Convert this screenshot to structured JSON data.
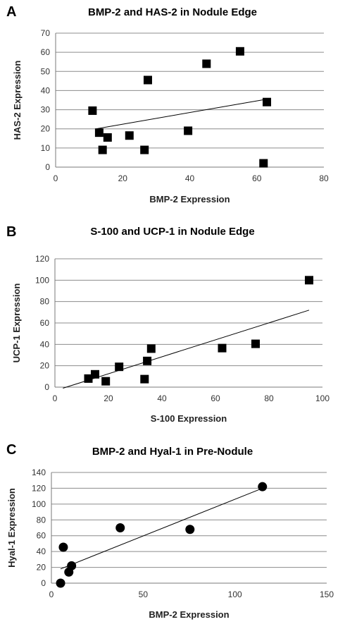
{
  "panels": [
    {
      "letter": "A"
    },
    {
      "letter": "B"
    },
    {
      "letter": "C"
    }
  ],
  "chart_data": [
    {
      "type": "scatter",
      "title": "BMP-2 and HAS-2 in Nodule Edge",
      "xlabel": "BMP-2 Expression",
      "ylabel": "HAS-2 Expression",
      "xlim": [
        0,
        80
      ],
      "ylim": [
        0,
        70
      ],
      "xticks": [
        0,
        20,
        40,
        60,
        80
      ],
      "yticks": [
        0,
        10,
        20,
        30,
        40,
        50,
        60,
        70
      ],
      "grid": "horizontal",
      "marker": "square",
      "trendline": {
        "x": [
          12,
          63
        ],
        "y": [
          20,
          35.5
        ]
      },
      "points": [
        {
          "x": 11,
          "y": 29.5
        },
        {
          "x": 13,
          "y": 18
        },
        {
          "x": 14,
          "y": 9
        },
        {
          "x": 15.5,
          "y": 15.5
        },
        {
          "x": 22,
          "y": 16.5
        },
        {
          "x": 26.5,
          "y": 9
        },
        {
          "x": 27.5,
          "y": 45.5
        },
        {
          "x": 39.5,
          "y": 19
        },
        {
          "x": 45,
          "y": 54
        },
        {
          "x": 55,
          "y": 60.5
        },
        {
          "x": 62,
          "y": 2
        },
        {
          "x": 63,
          "y": 34
        }
      ]
    },
    {
      "type": "scatter",
      "title": "S-100 and UCP-1 in Nodule Edge",
      "xlabel": "S-100 Expression",
      "ylabel": "UCP-1 Expression",
      "xlim": [
        0,
        100
      ],
      "ylim": [
        0,
        120
      ],
      "xticks": [
        0,
        20,
        40,
        60,
        80,
        100
      ],
      "yticks": [
        0,
        20,
        40,
        60,
        80,
        100,
        120
      ],
      "grid": "horizontal",
      "marker": "square",
      "trendline": {
        "x": [
          3,
          95
        ],
        "y": [
          -1,
          72
        ]
      },
      "points": [
        {
          "x": 12.5,
          "y": 8
        },
        {
          "x": 15,
          "y": 12
        },
        {
          "x": 19,
          "y": 5.5
        },
        {
          "x": 24,
          "y": 19
        },
        {
          "x": 33.5,
          "y": 7.5
        },
        {
          "x": 34.5,
          "y": 24.5
        },
        {
          "x": 36,
          "y": 36
        },
        {
          "x": 62.5,
          "y": 36.5
        },
        {
          "x": 75,
          "y": 40.5
        },
        {
          "x": 95,
          "y": 100
        }
      ]
    },
    {
      "type": "scatter",
      "title": "BMP-2 and Hyal-1 in Pre-Nodule",
      "xlabel": "BMP-2 Expression",
      "ylabel": "Hyal-1 Expression",
      "xlim": [
        0,
        150
      ],
      "ylim": [
        0,
        140
      ],
      "xticks": [
        0,
        50,
        100,
        150
      ],
      "yticks": [
        0,
        20,
        40,
        60,
        80,
        100,
        120,
        140
      ],
      "grid": "horizontal",
      "marker": "circle",
      "trendline": {
        "x": [
          5,
          115
        ],
        "y": [
          18,
          120
        ]
      },
      "points": [
        {
          "x": 5,
          "y": 0
        },
        {
          "x": 6.5,
          "y": 45.5
        },
        {
          "x": 9.5,
          "y": 14
        },
        {
          "x": 11,
          "y": 22
        },
        {
          "x": 37.5,
          "y": 70
        },
        {
          "x": 75.5,
          "y": 68
        },
        {
          "x": 115,
          "y": 122
        }
      ]
    }
  ]
}
